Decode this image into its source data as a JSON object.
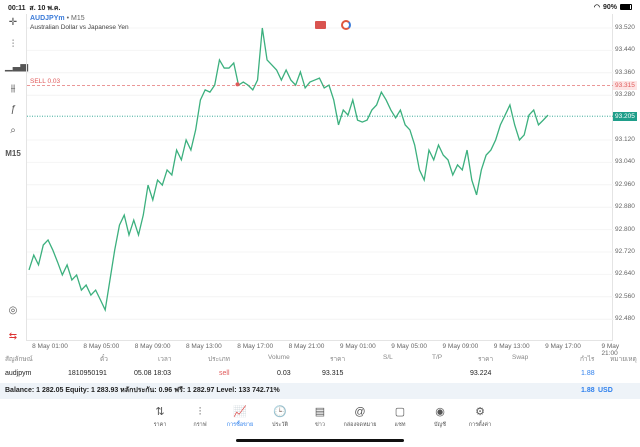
{
  "status": {
    "time": "00:11",
    "date": "ส. 10 พ.ค.",
    "battery": "90%"
  },
  "toolbar": {
    "timeframe": "M15"
  },
  "chart": {
    "symbol": "AUDJPYm",
    "timeframe": "M15",
    "separator": "•",
    "description": "Australian Dollar vs Japanese Yen",
    "sell_label": "SELL 0.03",
    "sell_price": 93.315,
    "sell_price_label": "93.315",
    "current_price": 93.205,
    "current_price_label": "93.205",
    "line_color": "#3cb07e",
    "sell_color": "#e05a5a",
    "price_tag_color": "#1f9e8a",
    "price_axis": [
      "93.520",
      "93.440",
      "93.360",
      "93.280",
      "93.120",
      "93.040",
      "92.960",
      "92.880",
      "92.800",
      "92.720",
      "92.640",
      "92.560",
      "92.480"
    ],
    "time_axis": [
      "8 May 01:00",
      "8 May 05:00",
      "8 May 09:00",
      "8 May 13:00",
      "8 May 17:00",
      "8 May 21:00",
      "9 May 01:00",
      "9 May 05:00",
      "9 May 09:00",
      "9 May 13:00",
      "9 May 17:00",
      "9 May 21:00"
    ],
    "prices": [
      92.656,
      92.709,
      92.674,
      92.745,
      92.763,
      92.727,
      92.684,
      92.638,
      92.674,
      92.62,
      92.638,
      92.584,
      92.602,
      92.566,
      92.584,
      92.549,
      92.513,
      92.62,
      92.727,
      92.816,
      92.852,
      92.781,
      92.834,
      92.781,
      92.852,
      92.959,
      92.906,
      92.977,
      92.959,
      93.013,
      92.995,
      93.084,
      93.049,
      93.12,
      93.084,
      93.156,
      93.263,
      93.299,
      93.291,
      93.316,
      93.406,
      93.377,
      93.377,
      93.395,
      93.316,
      93.327,
      93.316,
      93.299,
      93.334,
      93.52,
      93.406,
      93.388,
      93.37,
      93.334,
      93.37,
      93.334,
      93.316,
      93.363,
      93.306,
      93.327,
      93.334,
      93.341,
      93.306,
      93.316,
      93.263,
      93.174,
      93.227,
      93.209,
      93.263,
      93.191,
      93.184,
      93.191,
      93.227,
      93.245,
      93.291,
      93.263,
      93.227,
      93.199,
      93.227,
      93.174,
      93.156,
      93.102,
      93.013,
      92.977,
      93.084,
      93.049,
      93.102,
      93.066,
      93.049,
      92.995,
      93.031,
      93.013,
      93.084,
      92.977,
      92.924,
      93.013,
      93.066,
      93.084,
      93.12,
      93.174,
      93.209,
      93.245,
      93.174,
      93.12,
      93.138,
      93.209,
      93.227,
      93.174,
      93.191,
      93.209
    ],
    "entry_index": 44
  },
  "table": {
    "headers": [
      "สัญลักษณ์",
      "ตั๋ว",
      "เวลา",
      "ประเภท",
      "Volume",
      "ราคา",
      "S/L",
      "T/P",
      "ราคา",
      "Swap",
      "กำไร",
      "หมายเหตุ"
    ],
    "row": {
      "symbol": "audjpym",
      "ticket": "1810950191",
      "time": "05.08 18:03",
      "type": "sell",
      "volume": "0.03",
      "open_price": "93.315",
      "sl": "",
      "tp": "",
      "price": "93.224",
      "swap": "",
      "profit": "1.88",
      "comment": ""
    }
  },
  "balance": {
    "text": "Balance: 1 282.05 Equity: 1 283.93 หลักประกัน: 0.96 ฟรี: 1 282.97 Level: 133 742.71%",
    "total": "1.88",
    "currency": "USD"
  },
  "nav": [
    {
      "icon": "⇅",
      "label": "ราคา"
    },
    {
      "icon": "⫶",
      "label": "กราฟ"
    },
    {
      "icon": "📈",
      "label": "การซื้อขาย"
    },
    {
      "icon": "🕒",
      "label": "ประวัติ"
    },
    {
      "icon": "▤",
      "label": "ข่าว"
    },
    {
      "icon": "@",
      "label": "กล่องจดหมาย"
    },
    {
      "icon": "▢",
      "label": "แชท"
    },
    {
      "icon": "◉",
      "label": "บัญชี"
    },
    {
      "icon": "⚙",
      "label": "การตั้งค่า"
    }
  ]
}
